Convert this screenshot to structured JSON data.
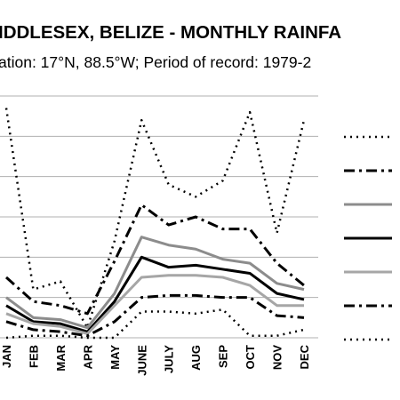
{
  "chart_data": {
    "type": "line",
    "title": "IDDLESEX, BELIZE - MONTHLY RAINFA",
    "subtitle": "ation: 17°N, 88.5°W; Period of record: 1979-2",
    "categories": [
      "JAN",
      "FEB",
      "MAR",
      "APR",
      "MAY",
      "JUNE",
      "JULY",
      "AUG",
      "SEP",
      "OCT",
      "NOV",
      "DEC"
    ],
    "ylim": [
      0,
      600
    ],
    "grid": true,
    "legend_position": "right",
    "series": [
      {
        "values": [
          570,
          120,
          140,
          25,
          240,
          540,
          380,
          350,
          390,
          560,
          260,
          540
        ],
        "color": "#000000",
        "dash": "2,5",
        "width": 2.5
      },
      {
        "values": [
          150,
          90,
          80,
          60,
          190,
          330,
          280,
          300,
          270,
          270,
          185,
          130
        ],
        "color": "#000000",
        "dash": "12,5,3,5",
        "width": 3
      },
      {
        "values": [
          100,
          50,
          45,
          25,
          110,
          250,
          230,
          220,
          195,
          185,
          135,
          120
        ],
        "color": "#8c8c8c",
        "dash": "",
        "width": 3
      },
      {
        "values": [
          80,
          40,
          35,
          15,
          90,
          200,
          175,
          180,
          170,
          160,
          110,
          95
        ],
        "color": "#000000",
        "dash": "",
        "width": 3
      },
      {
        "values": [
          60,
          35,
          28,
          10,
          80,
          150,
          155,
          155,
          150,
          130,
          80,
          80
        ],
        "color": "#a6a6a6",
        "dash": "",
        "width": 3
      },
      {
        "values": [
          40,
          20,
          15,
          5,
          40,
          100,
          105,
          105,
          100,
          100,
          55,
          50
        ],
        "color": "#000000",
        "dash": "12,5,3,5",
        "width": 3
      },
      {
        "values": [
          0,
          5,
          5,
          0,
          0,
          65,
          65,
          60,
          70,
          5,
          5,
          20
        ],
        "color": "#000000",
        "dash": "2,5",
        "width": 2.5
      }
    ]
  }
}
